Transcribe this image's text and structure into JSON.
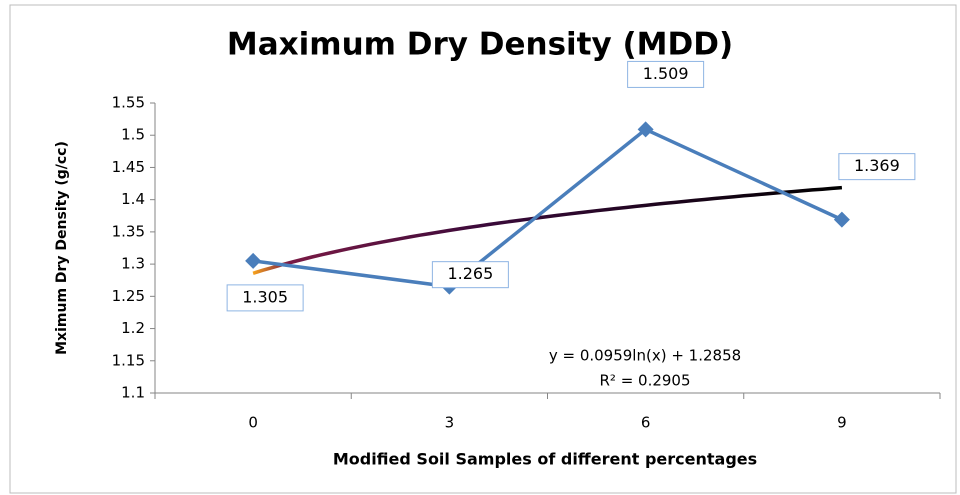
{
  "chart_data": {
    "type": "line",
    "title": "Maximum Dry Density (MDD)",
    "x_label": "Modified  Soil Samples of different percentages",
    "y_label": "Mximum Dry Density (g/cc)",
    "categories": [
      "0",
      "3",
      "6",
      "9"
    ],
    "series": [
      {
        "name": "MDD",
        "color": "#4a7ebb",
        "values": [
          1.305,
          1.265,
          1.509,
          1.369
        ]
      }
    ],
    "ylim": [
      1.1,
      1.55
    ],
    "yticks": [
      1.1,
      1.15,
      1.2,
      1.25,
      1.3,
      1.35,
      1.4,
      1.45,
      1.5,
      1.55
    ],
    "grid": false,
    "trendline": {
      "type": "log",
      "coefficient": 0.0959,
      "intercept": 1.2858,
      "equation": "y = 0.0959ln(x) + 1.2858",
      "r2_label": "R² = 0.2905",
      "colors": [
        "#f7a21b",
        "#7a1a45",
        "#3a0a3a",
        "#000000"
      ]
    }
  }
}
